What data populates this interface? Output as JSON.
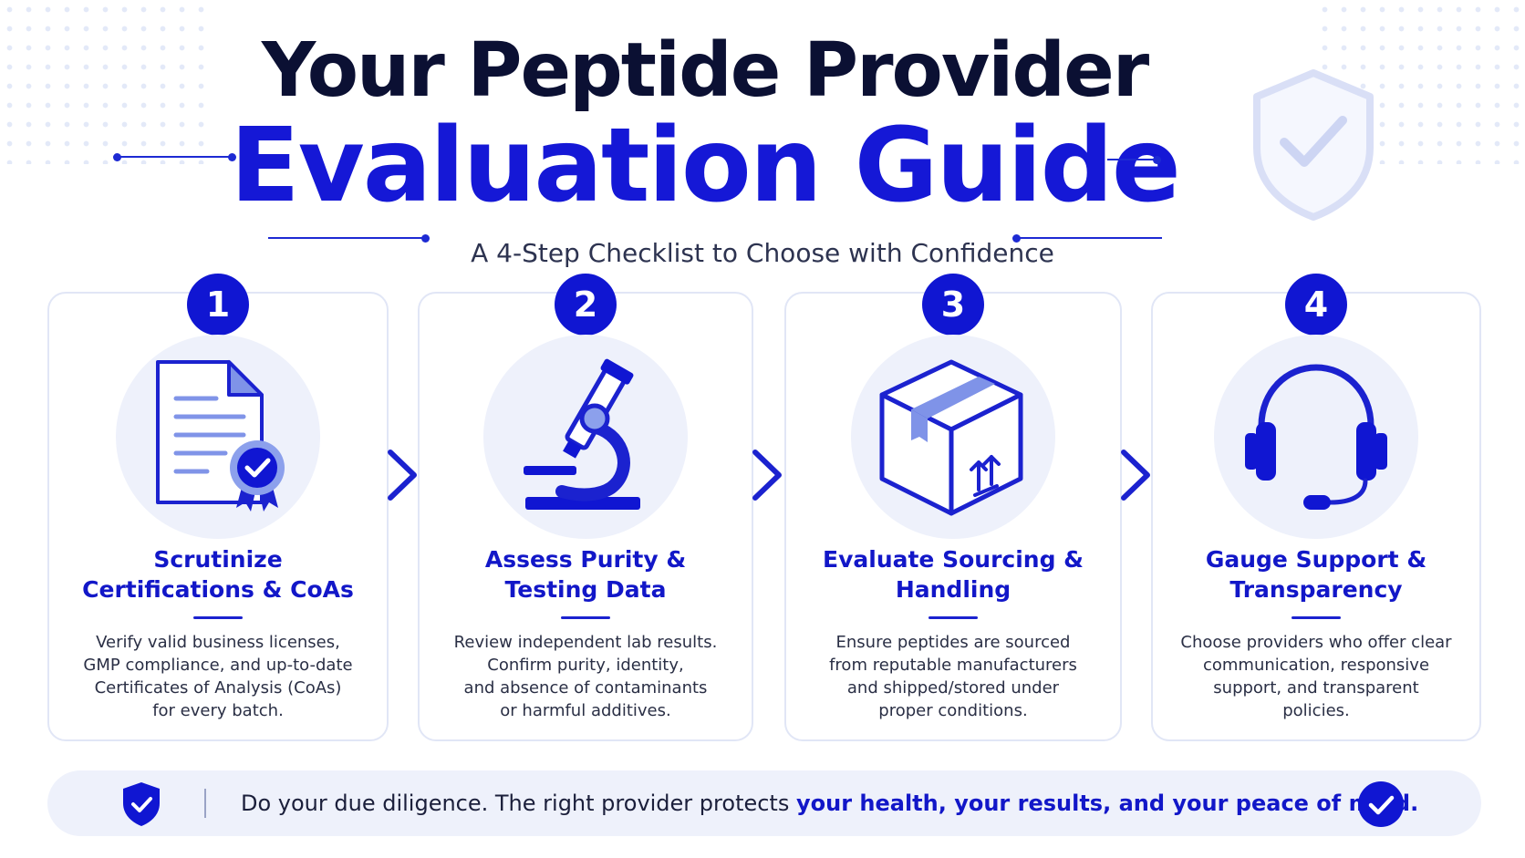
{
  "header": {
    "title_line1": "Your Peptide Provider",
    "title_line2": "Evaluation Guide",
    "subtitle": "A 4-Step Checklist to Choose with Confidence"
  },
  "steps": [
    {
      "number": "1",
      "icon": "certificate-document-icon",
      "title_line1": "Scrutinize",
      "title_line2": "Certifications & CoAs",
      "description": [
        "Verify valid business licenses,",
        "GMP compliance, and up-to-date",
        "Certificates of Analysis (CoAs)",
        "for every batch."
      ]
    },
    {
      "number": "2",
      "icon": "microscope-icon",
      "title_line1": "Assess Purity &",
      "title_line2": "Testing Data",
      "description": [
        "Review independent lab results.",
        "Confirm purity, identity,",
        "and absence of contaminants",
        "or harmful additives."
      ]
    },
    {
      "number": "3",
      "icon": "package-box-icon",
      "title_line1": "Evaluate Sourcing &",
      "title_line2": "Handling",
      "description": [
        "Ensure peptides are sourced",
        "from reputable manufacturers",
        "and shipped/stored under",
        "proper conditions."
      ]
    },
    {
      "number": "4",
      "icon": "headset-icon",
      "title_line1": "Gauge Support &",
      "title_line2": "Transparency",
      "description": [
        "Choose providers who offer clear",
        "communication, responsive",
        "support, and transparent",
        "policies."
      ]
    }
  ],
  "footer": {
    "text_plain": "Do your due diligence. The right provider protects ",
    "text_emphasis": "your health, your results, and your peace of mind."
  },
  "colors": {
    "primary": "#1016d2",
    "title_dark": "#0b1033",
    "icon_circle": "#eef1fb",
    "card_border": "#e1e6f6"
  }
}
